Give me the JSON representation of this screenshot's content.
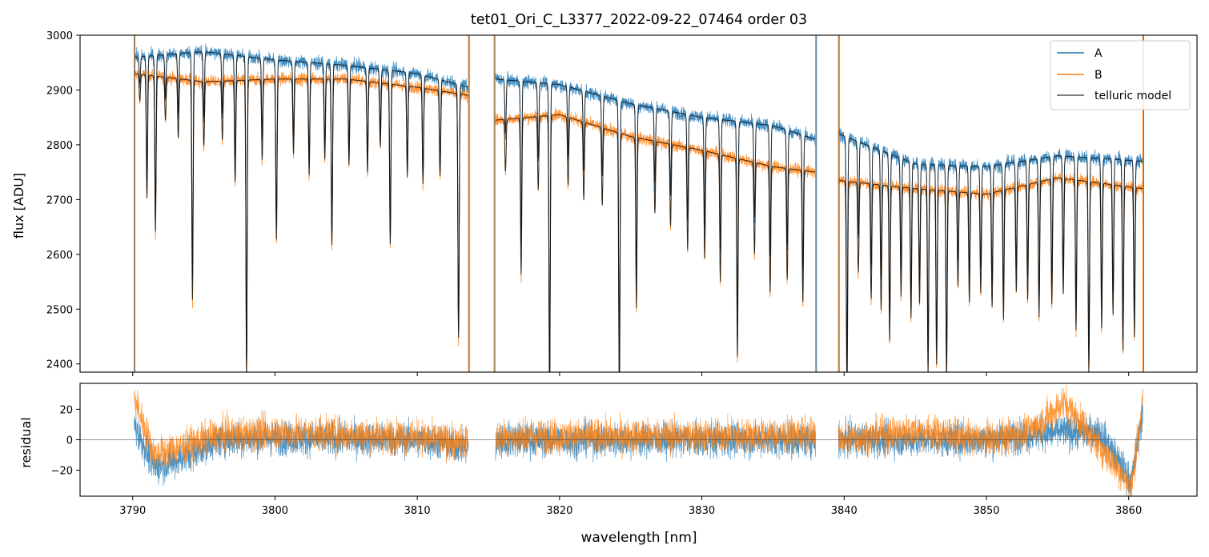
{
  "title": "tet01_Ori_C_L3377_2022-09-22_07464  order 03",
  "chart_data": [
    {
      "type": "line",
      "panel": "flux",
      "title": "tet01_Ori_C_L3377_2022-09-22_07464  order 03",
      "xlabel": "",
      "ylabel": "flux [ADU]",
      "xlim": [
        3786.3,
        3864.8
      ],
      "ylim": [
        2385,
        3000
      ],
      "yticks": [
        2400,
        2500,
        2600,
        2700,
        2800,
        2900,
        3000
      ],
      "xticks": [
        3790,
        3800,
        3810,
        3820,
        3830,
        3840,
        3850,
        3860
      ],
      "legend_position": "top-right",
      "segments": [
        [
          3790.1,
          3813.6
        ],
        [
          3815.5,
          3838.0
        ],
        [
          3839.6,
          3861.0
        ]
      ],
      "spikes": [
        3790.1,
        3813.6,
        3815.4,
        3838.0,
        3839.6,
        3861.0
      ],
      "series": [
        {
          "name": "A",
          "color": "#1f77b4",
          "continuum_x": [
            3790.1,
            3795,
            3800,
            3805,
            3810,
            3813.6,
            3815.5,
            3820,
            3825,
            3830,
            3835,
            3838.0,
            3839.6,
            3845,
            3850,
            3855,
            3861.0
          ],
          "continuum_y": [
            2960,
            2970,
            2955,
            2945,
            2930,
            2905,
            2920,
            2910,
            2875,
            2850,
            2835,
            2810,
            2820,
            2765,
            2760,
            2780,
            2770
          ]
        },
        {
          "name": "B",
          "color": "#ff7f0e",
          "continuum_x": [
            3790.1,
            3795,
            3800,
            3805,
            3810,
            3813.6,
            3815.5,
            3820,
            3825,
            3830,
            3835,
            3838.0,
            3839.6,
            3845,
            3850,
            3855,
            3861.0
          ],
          "continuum_y": [
            2930,
            2915,
            2920,
            2920,
            2905,
            2890,
            2845,
            2855,
            2815,
            2790,
            2760,
            2750,
            2735,
            2720,
            2710,
            2740,
            2720
          ]
        },
        {
          "name": "telluric model",
          "color": "#555555"
        }
      ],
      "absorption_lines": [
        {
          "x": 3790.5,
          "depth": 50
        },
        {
          "x": 3791.0,
          "depth": 230
        },
        {
          "x": 3791.6,
          "depth": 290
        },
        {
          "x": 3792.3,
          "depth": 80
        },
        {
          "x": 3793.2,
          "depth": 110
        },
        {
          "x": 3794.2,
          "depth": 410
        },
        {
          "x": 3795.0,
          "depth": 120
        },
        {
          "x": 3796.3,
          "depth": 110
        },
        {
          "x": 3797.2,
          "depth": 190
        },
        {
          "x": 3798.0,
          "depth": 560
        },
        {
          "x": 3799.1,
          "depth": 150
        },
        {
          "x": 3800.1,
          "depth": 300
        },
        {
          "x": 3801.3,
          "depth": 140
        },
        {
          "x": 3802.4,
          "depth": 180
        },
        {
          "x": 3803.5,
          "depth": 150
        },
        {
          "x": 3804.0,
          "depth": 310
        },
        {
          "x": 3805.2,
          "depth": 160
        },
        {
          "x": 3806.5,
          "depth": 170
        },
        {
          "x": 3807.4,
          "depth": 120
        },
        {
          "x": 3808.1,
          "depth": 300
        },
        {
          "x": 3809.3,
          "depth": 170
        },
        {
          "x": 3810.4,
          "depth": 180
        },
        {
          "x": 3811.6,
          "depth": 160
        },
        {
          "x": 3812.9,
          "depth": 460
        },
        {
          "x": 3816.2,
          "depth": 100
        },
        {
          "x": 3817.3,
          "depth": 300
        },
        {
          "x": 3818.5,
          "depth": 140
        },
        {
          "x": 3819.3,
          "depth": 560
        },
        {
          "x": 3820.6,
          "depth": 130
        },
        {
          "x": 3821.7,
          "depth": 150
        },
        {
          "x": 3823.0,
          "depth": 150
        },
        {
          "x": 3824.2,
          "depth": 520
        },
        {
          "x": 3825.4,
          "depth": 330
        },
        {
          "x": 3826.7,
          "depth": 140
        },
        {
          "x": 3827.8,
          "depth": 160
        },
        {
          "x": 3829.0,
          "depth": 200
        },
        {
          "x": 3830.2,
          "depth": 210
        },
        {
          "x": 3831.3,
          "depth": 250
        },
        {
          "x": 3832.5,
          "depth": 390
        },
        {
          "x": 3833.7,
          "depth": 180
        },
        {
          "x": 3834.8,
          "depth": 250
        },
        {
          "x": 3836.0,
          "depth": 220
        },
        {
          "x": 3837.1,
          "depth": 260
        },
        {
          "x": 3840.2,
          "depth": 430
        },
        {
          "x": 3841.0,
          "depth": 180
        },
        {
          "x": 3841.9,
          "depth": 230
        },
        {
          "x": 3842.6,
          "depth": 250
        },
        {
          "x": 3843.2,
          "depth": 310
        },
        {
          "x": 3844.0,
          "depth": 220
        },
        {
          "x": 3844.7,
          "depth": 260
        },
        {
          "x": 3845.3,
          "depth": 230
        },
        {
          "x": 3845.9,
          "depth": 370
        },
        {
          "x": 3846.5,
          "depth": 350
        },
        {
          "x": 3847.2,
          "depth": 380
        },
        {
          "x": 3848.0,
          "depth": 190
        },
        {
          "x": 3848.8,
          "depth": 220
        },
        {
          "x": 3849.6,
          "depth": 200
        },
        {
          "x": 3850.4,
          "depth": 230
        },
        {
          "x": 3851.2,
          "depth": 260
        },
        {
          "x": 3852.1,
          "depth": 210
        },
        {
          "x": 3852.9,
          "depth": 230
        },
        {
          "x": 3853.7,
          "depth": 270
        },
        {
          "x": 3854.6,
          "depth": 250
        },
        {
          "x": 3855.4,
          "depth": 230
        },
        {
          "x": 3856.3,
          "depth": 300
        },
        {
          "x": 3857.2,
          "depth": 380
        },
        {
          "x": 3858.1,
          "depth": 290
        },
        {
          "x": 3858.9,
          "depth": 260
        },
        {
          "x": 3859.6,
          "depth": 330
        },
        {
          "x": 3860.4,
          "depth": 300
        }
      ]
    },
    {
      "type": "line",
      "panel": "residual",
      "xlabel": "wavelength [nm]",
      "ylabel": "residual",
      "xlim": [
        3786.3,
        3864.8
      ],
      "ylim": [
        -37,
        37
      ],
      "yticks": [
        -20,
        0,
        20
      ],
      "xticks": [
        3790,
        3800,
        3810,
        3820,
        3830,
        3840,
        3850,
        3860
      ],
      "zero_line": true,
      "series": [
        {
          "name": "A",
          "color": "#1f77b4",
          "trend_x": [
            3790.1,
            3791.5,
            3793,
            3796,
            3800,
            3810,
            3813.6,
            3815.5,
            3838.0,
            3839.6,
            3845,
            3850,
            3855,
            3858,
            3860.2,
            3861.0
          ],
          "trend_y": [
            10,
            -18,
            -14,
            0,
            1,
            0,
            -5,
            0,
            0,
            0,
            0,
            0,
            5,
            5,
            -28,
            20
          ]
        },
        {
          "name": "B",
          "color": "#ff7f0e",
          "trend_x": [
            3790.1,
            3791.5,
            3793,
            3796,
            3800,
            3810,
            3813.6,
            3815.5,
            3838.0,
            3839.6,
            3845,
            3850,
            3853,
            3855.5,
            3858,
            3860.2,
            3861.0
          ],
          "trend_y": [
            28,
            -10,
            -6,
            3,
            5,
            2,
            -3,
            2,
            3,
            0,
            6,
            0,
            5,
            25,
            -5,
            -30,
            25
          ]
        }
      ]
    }
  ]
}
